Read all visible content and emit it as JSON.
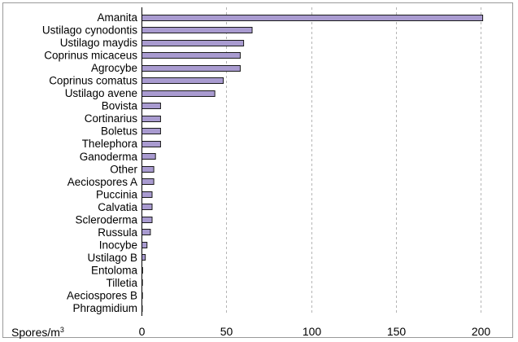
{
  "chart_data": {
    "type": "bar",
    "orientation": "horizontal",
    "categories": [
      "Amanita",
      "Ustilago cynodontis",
      "Ustilago maydis",
      "Coprinus micaceus",
      "Agrocybe",
      "Coprinus comatus",
      "Ustilago avene",
      "Bovista",
      "Cortinarius",
      "Boletus",
      "Thelephora",
      "Ganoderma",
      "Other",
      "Aeciospores A",
      "Puccinia",
      "Calvatia",
      "Scleroderma",
      "Russula",
      "Inocybe",
      "Ustilago B",
      "Entoloma",
      "Tilletia",
      "Aeciospores B",
      "Phragmidium"
    ],
    "values": [
      201,
      65,
      60,
      58,
      58,
      48,
      43,
      11,
      11,
      11,
      11,
      8,
      7,
      7,
      6,
      6,
      6,
      5,
      3,
      2,
      0.4,
      0.3,
      0.3,
      0.2
    ],
    "xlim": [
      0,
      210
    ],
    "xticks": [
      0,
      50,
      100,
      150,
      200
    ],
    "xlabel": "Spores/m",
    "xlabel_sup": "3",
    "grid": "vertical dashed",
    "colors": {
      "bar": "#a99bd0",
      "bar_edge": "#1a1a1a",
      "grid": "#b5b5b5"
    }
  }
}
